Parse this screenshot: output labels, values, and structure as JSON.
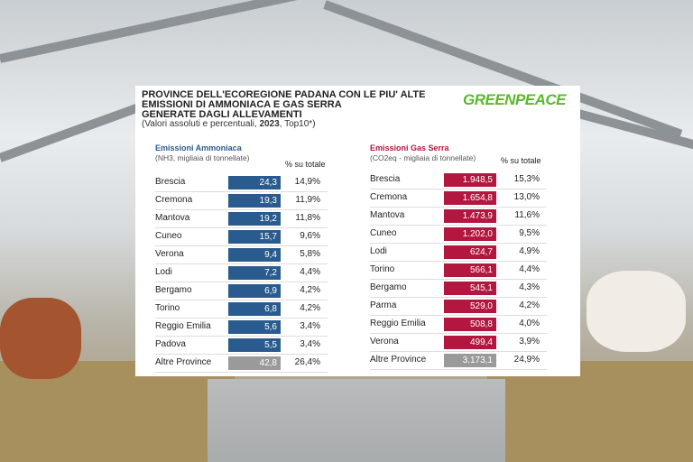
{
  "header": {
    "title_lines": [
      "PROVINCE DELL'ECOREGIONE PADANA CON LE PIU' ALTE",
      "EMISSIONI DI AMMONIACA E GAS SERRA",
      "GENERATE DAGLI ALLEVAMENTI"
    ],
    "subtitle_parts": [
      "(Valori assoluti e percentuali, ",
      "2023",
      ", Top10*)"
    ],
    "logo": "GREENPEACE"
  },
  "tables": [
    {
      "title": "Emissioni Ammoniaca",
      "unit": "(NH3, migliaia di tonnellate)",
      "pct_header": "% su totale",
      "rows": [
        [
          "Brescia",
          "24,3",
          "14,9%"
        ],
        [
          "Cremona",
          "19,3",
          "11,9%"
        ],
        [
          "Mantova",
          "19,2",
          "11,8%"
        ],
        [
          "Cuneo",
          "15,7",
          "9,6%"
        ],
        [
          "Verona",
          "9,4",
          "5,8%"
        ],
        [
          "Lodi",
          "7,2",
          "4,4%"
        ],
        [
          "Bergamo",
          "6,9",
          "4,2%"
        ],
        [
          "Torino",
          "6,8",
          "4,2%"
        ],
        [
          "Reggio Emilia",
          "5,6",
          "3,4%"
        ],
        [
          "Padova",
          "5,5",
          "3,4%"
        ],
        [
          "Altre Province",
          "42,8",
          "26,4%"
        ]
      ]
    },
    {
      "title": "Emissioni Gas Serra",
      "unit": "(CO2eq - migliaia di tonnellate)",
      "pct_header": "% su totale",
      "rows": [
        [
          "Brescia",
          "1.948,5",
          "15,3%"
        ],
        [
          "Cremona",
          "1.654,8",
          "13,0%"
        ],
        [
          "Mantova",
          "1.473,9",
          "11,6%"
        ],
        [
          "Cuneo",
          "1.202,0",
          "9,5%"
        ],
        [
          "Lodi",
          "624,7",
          "4,9%"
        ],
        [
          "Torino",
          "566,1",
          "4,4%"
        ],
        [
          "Bergamo",
          "545,1",
          "4,3%"
        ],
        [
          "Parma",
          "529,0",
          "4,2%"
        ],
        [
          "Reggio Emilia",
          "508,8",
          "4,0%"
        ],
        [
          "Verona",
          "499,4",
          "3,9%"
        ],
        [
          "Altre Province",
          "3.173,1",
          "24,9%"
        ]
      ]
    }
  ]
}
